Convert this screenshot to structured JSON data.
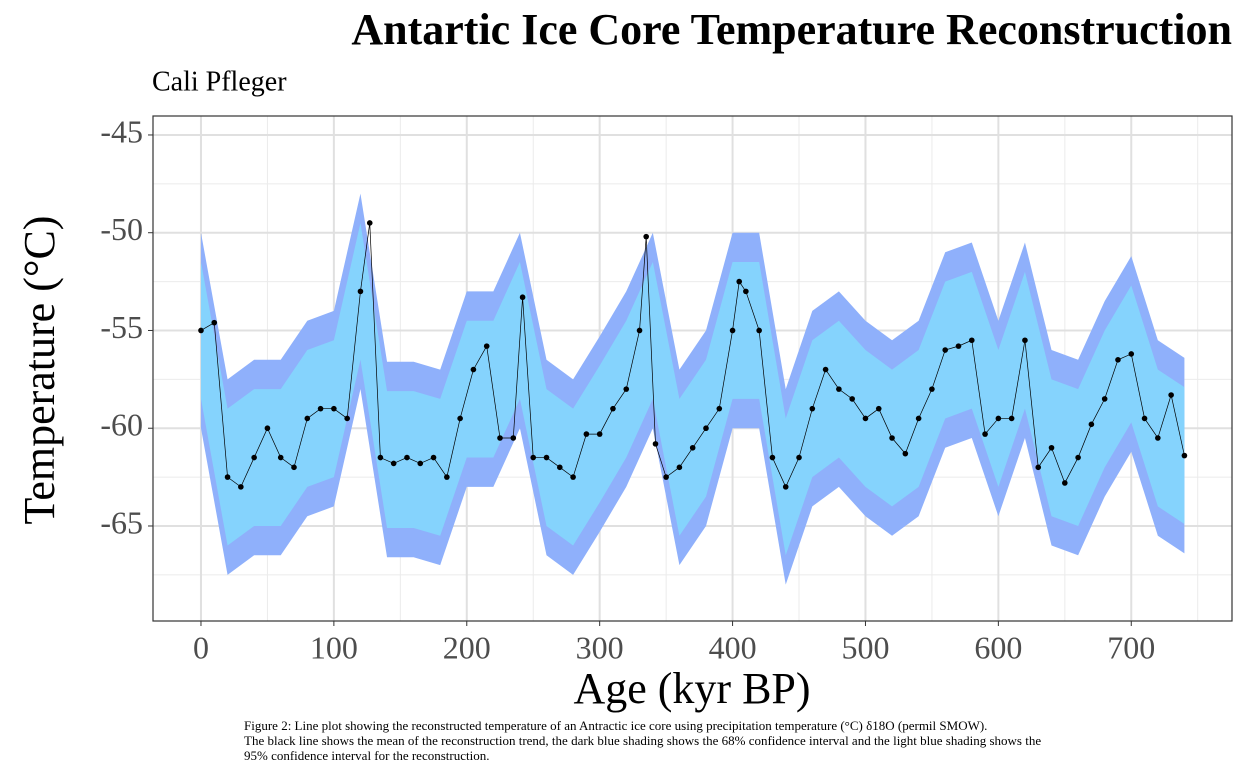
{
  "chart_data": {
    "type": "line",
    "title": "Antartic Ice Core Temperature Reconstruction",
    "subtitle": "Cali Pfleger",
    "x_label": "Age (kyr BP)",
    "y_label": "Temperature (°C)",
    "caption": [
      "Figure 2: Line plot showing the reconstructed temperature of  an Antractic ice core using precipitation temperature (°C) δ18O (permil SMOW).",
      " The black line shows the mean of the reconstruction trend, the dark blue shading shows the 68% confidence interval and the light blue shading shows the",
      " 95% confidence interval for the reconstruction."
    ],
    "x": [
      0,
      10,
      20,
      30,
      40,
      50,
      60,
      70,
      80,
      90,
      100,
      110,
      120,
      127,
      135,
      145,
      155,
      165,
      175,
      185,
      195,
      205,
      215,
      225,
      235,
      242,
      250,
      260,
      270,
      280,
      290,
      300,
      310,
      320,
      330,
      335,
      342,
      350,
      360,
      370,
      380,
      390,
      400,
      405,
      410,
      420,
      430,
      440,
      450,
      460,
      470,
      480,
      490,
      500,
      510,
      520,
      530,
      540,
      550,
      560,
      570,
      580,
      590,
      600,
      610,
      620,
      630,
      640,
      650,
      660,
      670,
      680,
      690,
      700,
      710,
      720,
      730,
      740
    ],
    "values": [
      -55,
      -54.6,
      -62.5,
      -63,
      -61.5,
      -60,
      -61.5,
      -62,
      -59.5,
      -59,
      -59,
      -59.5,
      -53,
      -49.5,
      -61.5,
      -61.8,
      -61.5,
      -61.8,
      -61.5,
      -62.5,
      -59.5,
      -57,
      -55.8,
      -60.5,
      -60.5,
      -53.3,
      -61.5,
      -61.5,
      -62,
      -62.5,
      -60.3,
      -60.3,
      -59,
      -58,
      -55,
      -50.2,
      -60.8,
      -62.5,
      -62,
      -61,
      -60,
      -59,
      -55,
      -52.5,
      -53,
      -55,
      -61.5,
      -63,
      -61.5,
      -59,
      -57,
      -58,
      -58.5,
      -59.5,
      -59,
      -60.5,
      -61.3,
      -59.5,
      -58,
      -56,
      -55.8,
      -55.5,
      -60.3,
      -59.5,
      -59.5,
      -55.5,
      -62,
      -61,
      -62.8,
      -61.5,
      -59.8,
      -58.5,
      -56.5,
      -56.2,
      -59.5,
      -60.5,
      -58.3,
      -61.4
    ],
    "color": "#000000",
    "band_x": [
      0,
      20,
      40,
      60,
      80,
      100,
      120,
      140,
      160,
      180,
      200,
      220,
      240,
      260,
      280,
      300,
      320,
      340,
      360,
      380,
      400,
      420,
      440,
      460,
      480,
      500,
      520,
      540,
      560,
      580,
      600,
      620,
      640,
      660,
      680,
      700,
      720,
      740
    ],
    "band_95": {
      "color": "#8fb0fb",
      "upper": [
        -50,
        -57.5,
        -56.5,
        -56.5,
        -54.5,
        -54,
        -48,
        -56.6,
        -56.6,
        -57,
        -53,
        -53,
        -50,
        -56.5,
        -57.5,
        -55.3,
        -53,
        -50,
        -57,
        -55,
        -50,
        -50,
        -58,
        -54,
        -53,
        -54.5,
        -55.5,
        -54.5,
        -51,
        -50.5,
        -54.5,
        -50.5,
        -56,
        -56.5,
        -53.5,
        -51.2,
        -55.5,
        -56.4
      ],
      "lower": [
        -60,
        -67.5,
        -66.5,
        -66.5,
        -64.5,
        -64,
        -58,
        -66.6,
        -66.6,
        -67,
        -63,
        -63,
        -60,
        -66.5,
        -67.5,
        -65.3,
        -63,
        -60,
        -67,
        -65,
        -60,
        -60,
        -68,
        -64,
        -63,
        -64.5,
        -65.5,
        -64.5,
        -61,
        -60.5,
        -64.5,
        -60.5,
        -66,
        -66.5,
        -63.5,
        -61.2,
        -65.5,
        -66.4
      ]
    },
    "band_68": {
      "color": "#85d3fd",
      "upper": [
        -51.5,
        -59,
        -58,
        -58,
        -56,
        -55.5,
        -49.5,
        -58.1,
        -58.1,
        -58.5,
        -54.5,
        -54.5,
        -51.5,
        -58,
        -59,
        -56.8,
        -54.5,
        -51.5,
        -58.5,
        -56.5,
        -51.5,
        -51.5,
        -59.5,
        -55.5,
        -54.5,
        -56,
        -57,
        -56,
        -52.5,
        -52,
        -56,
        -52,
        -57.5,
        -58,
        -55,
        -52.7,
        -57,
        -57.9
      ],
      "lower": [
        -58.5,
        -66,
        -65,
        -65,
        -63,
        -62.5,
        -56.5,
        -65.1,
        -65.1,
        -65.5,
        -61.5,
        -61.5,
        -58.5,
        -65,
        -66,
        -63.8,
        -61.5,
        -58.5,
        -65.5,
        -63.5,
        -58.5,
        -58.5,
        -66.5,
        -62.5,
        -61.5,
        -63,
        -64,
        -63,
        -59.5,
        -59,
        -63,
        -59,
        -64.5,
        -65,
        -62,
        -59.7,
        -64,
        -64.9
      ]
    },
    "xlim": [
      -36.1,
      775.8
    ],
    "ylim": [
      -69.86,
      -44.03
    ],
    "xticks": [
      0,
      100,
      200,
      300,
      400,
      500,
      600,
      700
    ],
    "yticks": [
      -45,
      -50,
      -55,
      -60,
      -65
    ],
    "x_minor_ticks": [
      50,
      150,
      250,
      350,
      450,
      550,
      650,
      750
    ],
    "y_minor_ticks": [
      -47.5,
      -52.5,
      -57.5,
      -62.5,
      -67.5
    ],
    "grid": true
  }
}
